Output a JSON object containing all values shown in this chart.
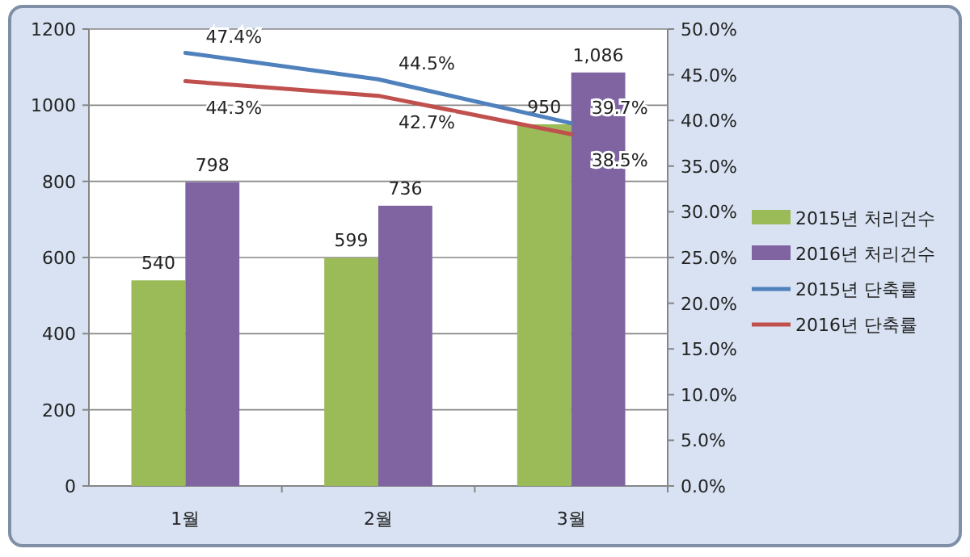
{
  "chart_data": {
    "type": "bar",
    "categories": [
      "1월",
      "2월",
      "3월"
    ],
    "series": [
      {
        "name": "2015년 처리건수",
        "color": "#9bbb59",
        "values": [
          540,
          599,
          950
        ],
        "value_labels": [
          "540",
          "599",
          "950"
        ]
      },
      {
        "name": "2016년 처리건수",
        "color": "#8064a2",
        "values": [
          798,
          736,
          1086
        ],
        "value_labels": [
          "798",
          "736",
          "1,086"
        ]
      },
      {
        "name": "2015년 단축률",
        "type": "line",
        "axis": "y2",
        "color": "#4f81bd",
        "values": [
          47.4,
          44.5,
          39.7
        ],
        "value_labels": [
          "47.4%",
          "44.5%",
          "39.7%"
        ]
      },
      {
        "name": "2016년 단축률",
        "type": "line",
        "axis": "y2",
        "color": "#c0504d",
        "values": [
          44.3,
          42.7,
          38.5
        ],
        "value_labels": [
          "44.3%",
          "42.7%",
          "38.5%"
        ]
      }
    ],
    "ylim": [
      0,
      1200
    ],
    "yticks": [
      0,
      200,
      400,
      600,
      800,
      1000,
      1200
    ],
    "y2lim": [
      0,
      50
    ],
    "y2ticks": [
      {
        "value": 0,
        "label": "0.0%"
      },
      {
        "value": 5,
        "label": "5.0%"
      },
      {
        "value": 10,
        "label": "10.0%"
      },
      {
        "value": 15,
        "label": "15.0%"
      },
      {
        "value": 20,
        "label": "20.0%"
      },
      {
        "value": 25,
        "label": "25.0%"
      },
      {
        "value": 30,
        "label": "30.0%"
      },
      {
        "value": 35,
        "label": "35.0%"
      },
      {
        "value": 40,
        "label": "40.0%"
      },
      {
        "value": 45,
        "label": "45.0%"
      },
      {
        "value": 50,
        "label": "50.0%"
      }
    ],
    "grid": "y",
    "legend": "right",
    "marker": "none",
    "line_style": "solid"
  }
}
